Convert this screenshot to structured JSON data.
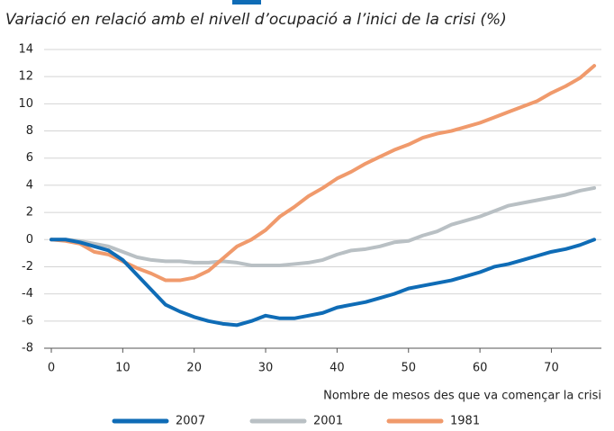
{
  "chart_data": {
    "type": "line",
    "title": "Variació en relació amb el nivell d’ocupació a l’inici de la crisi (%)",
    "x_label": "Nombre de mesos des que va començar la crisi",
    "x": [
      0,
      2,
      4,
      6,
      8,
      10,
      12,
      14,
      16,
      18,
      20,
      22,
      24,
      26,
      28,
      30,
      32,
      34,
      36,
      38,
      40,
      42,
      44,
      46,
      48,
      50,
      52,
      54,
      56,
      58,
      60,
      62,
      64,
      66,
      68,
      70,
      72,
      74,
      76
    ],
    "series": [
      {
        "name": "2007",
        "color": "#0f6cb6",
        "values": [
          0,
          0,
          -0.2,
          -0.5,
          -0.8,
          -1.5,
          -2.6,
          -3.7,
          -4.8,
          -5.3,
          -5.7,
          -6.0,
          -6.2,
          -6.3,
          -6.0,
          -5.6,
          -5.8,
          -5.8,
          -5.6,
          -5.4,
          -5.0,
          -4.8,
          -4.6,
          -4.3,
          -4.0,
          -3.6,
          -3.4,
          -3.2,
          -3.0,
          -2.7,
          -2.4,
          -2.0,
          -1.8,
          -1.5,
          -1.2,
          -0.9,
          -0.7,
          -0.4,
          0
        ]
      },
      {
        "name": "2001",
        "color": "#b9c0c4",
        "values": [
          0,
          0,
          -0.1,
          -0.3,
          -0.5,
          -0.9,
          -1.3,
          -1.5,
          -1.6,
          -1.6,
          -1.7,
          -1.7,
          -1.6,
          -1.7,
          -1.9,
          -1.9,
          -1.9,
          -1.8,
          -1.7,
          -1.5,
          -1.1,
          -0.8,
          -0.7,
          -0.5,
          -0.2,
          -0.1,
          0.3,
          0.6,
          1.1,
          1.4,
          1.7,
          2.1,
          2.5,
          2.7,
          2.9,
          3.1,
          3.3,
          3.6,
          3.8
        ]
      },
      {
        "name": "1981",
        "color": "#f09a6c",
        "values": [
          0,
          -0.1,
          -0.3,
          -0.9,
          -1.1,
          -1.6,
          -2.1,
          -2.5,
          -3.0,
          -3.0,
          -2.8,
          -2.3,
          -1.4,
          -0.5,
          0.0,
          0.7,
          1.7,
          2.4,
          3.2,
          3.8,
          4.5,
          5.0,
          5.6,
          6.1,
          6.6,
          7.0,
          7.5,
          7.8,
          8.0,
          8.3,
          8.6,
          9.0,
          9.4,
          9.8,
          10.2,
          10.8,
          11.3,
          11.9,
          12.8
        ]
      }
    ],
    "xlim": [
      0,
      77
    ],
    "xticks": [
      0,
      10,
      20,
      30,
      40,
      50,
      60,
      70
    ],
    "ylim": [
      -8,
      14
    ],
    "yticks": [
      -8,
      -6,
      -4,
      -2,
      0,
      2,
      4,
      6,
      8,
      10,
      12,
      14
    ],
    "grid": true
  }
}
